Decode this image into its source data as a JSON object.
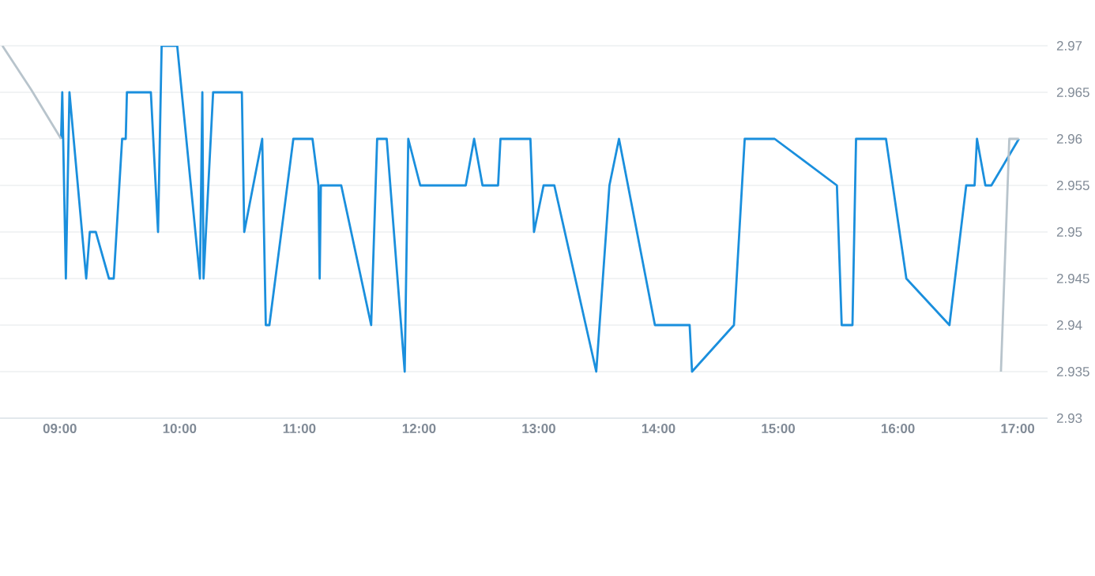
{
  "chart_data": {
    "type": "line",
    "xlim": [
      8.5,
      17.25
    ],
    "ylim": [
      2.93,
      2.97
    ],
    "xticks": [
      {
        "value": 9,
        "label": "09:00"
      },
      {
        "value": 10,
        "label": "10:00"
      },
      {
        "value": 11,
        "label": "11:00"
      },
      {
        "value": 12,
        "label": "12:00"
      },
      {
        "value": 13,
        "label": "13:00"
      },
      {
        "value": 14,
        "label": "14:00"
      },
      {
        "value": 15,
        "label": "15:00"
      },
      {
        "value": 16,
        "label": "16:00"
      },
      {
        "value": 17,
        "label": "17:00"
      }
    ],
    "yticks": [
      2.93,
      2.935,
      2.94,
      2.945,
      2.95,
      2.955,
      2.96,
      2.965,
      2.97
    ],
    "grid": "y",
    "marker": "none",
    "line_style": "solid",
    "series": [
      {
        "color": "#1a8fdd",
        "x": [
          9.01,
          9.02,
          9.05,
          9.08,
          9.22,
          9.25,
          9.3,
          9.41,
          9.45,
          9.52,
          9.55,
          9.56,
          9.76,
          9.82,
          9.85,
          9.98,
          10.17,
          10.19,
          10.2,
          10.28,
          10.52,
          10.54,
          10.69,
          10.72,
          10.75,
          10.95,
          11.11,
          11.16,
          11.17,
          11.18,
          11.35,
          11.6,
          11.65,
          11.73,
          11.88,
          11.91,
          12.01,
          12.39,
          12.46,
          12.53,
          12.66,
          12.68,
          12.93,
          12.96,
          13.04,
          13.13,
          13.48,
          13.59,
          13.67,
          13.97,
          14.26,
          14.28,
          14.63,
          14.72,
          14.97,
          15.49,
          15.53,
          15.62,
          15.65,
          15.9,
          16.07,
          16.43,
          16.57,
          16.64,
          16.66,
          16.73,
          16.78,
          17.01
        ],
        "values": [
          2.96,
          2.965,
          2.945,
          2.965,
          2.945,
          2.95,
          2.95,
          2.945,
          2.945,
          2.96,
          2.96,
          2.965,
          2.965,
          2.95,
          2.97,
          2.97,
          2.945,
          2.965,
          2.945,
          2.965,
          2.965,
          2.95,
          2.96,
          2.94,
          2.94,
          2.96,
          2.96,
          2.955,
          2.945,
          2.955,
          2.955,
          2.94,
          2.96,
          2.96,
          2.935,
          2.96,
          2.955,
          2.955,
          2.96,
          2.955,
          2.955,
          2.96,
          2.96,
          2.95,
          2.955,
          2.955,
          2.935,
          2.955,
          2.96,
          2.94,
          2.94,
          2.935,
          2.94,
          2.96,
          2.96,
          2.955,
          2.94,
          2.94,
          2.96,
          2.96,
          2.945,
          2.94,
          2.955,
          2.955,
          2.96,
          2.955,
          2.955,
          2.96
        ]
      },
      {
        "color": "#b8c4cc",
        "x": [
          8.52,
          8.76,
          9.01,
          12.5,
          16.86,
          16.93,
          17.01
        ],
        "values": [
          2.97,
          2.9653,
          2.96,
          null,
          2.935,
          2.96,
          2.96
        ]
      }
    ]
  }
}
